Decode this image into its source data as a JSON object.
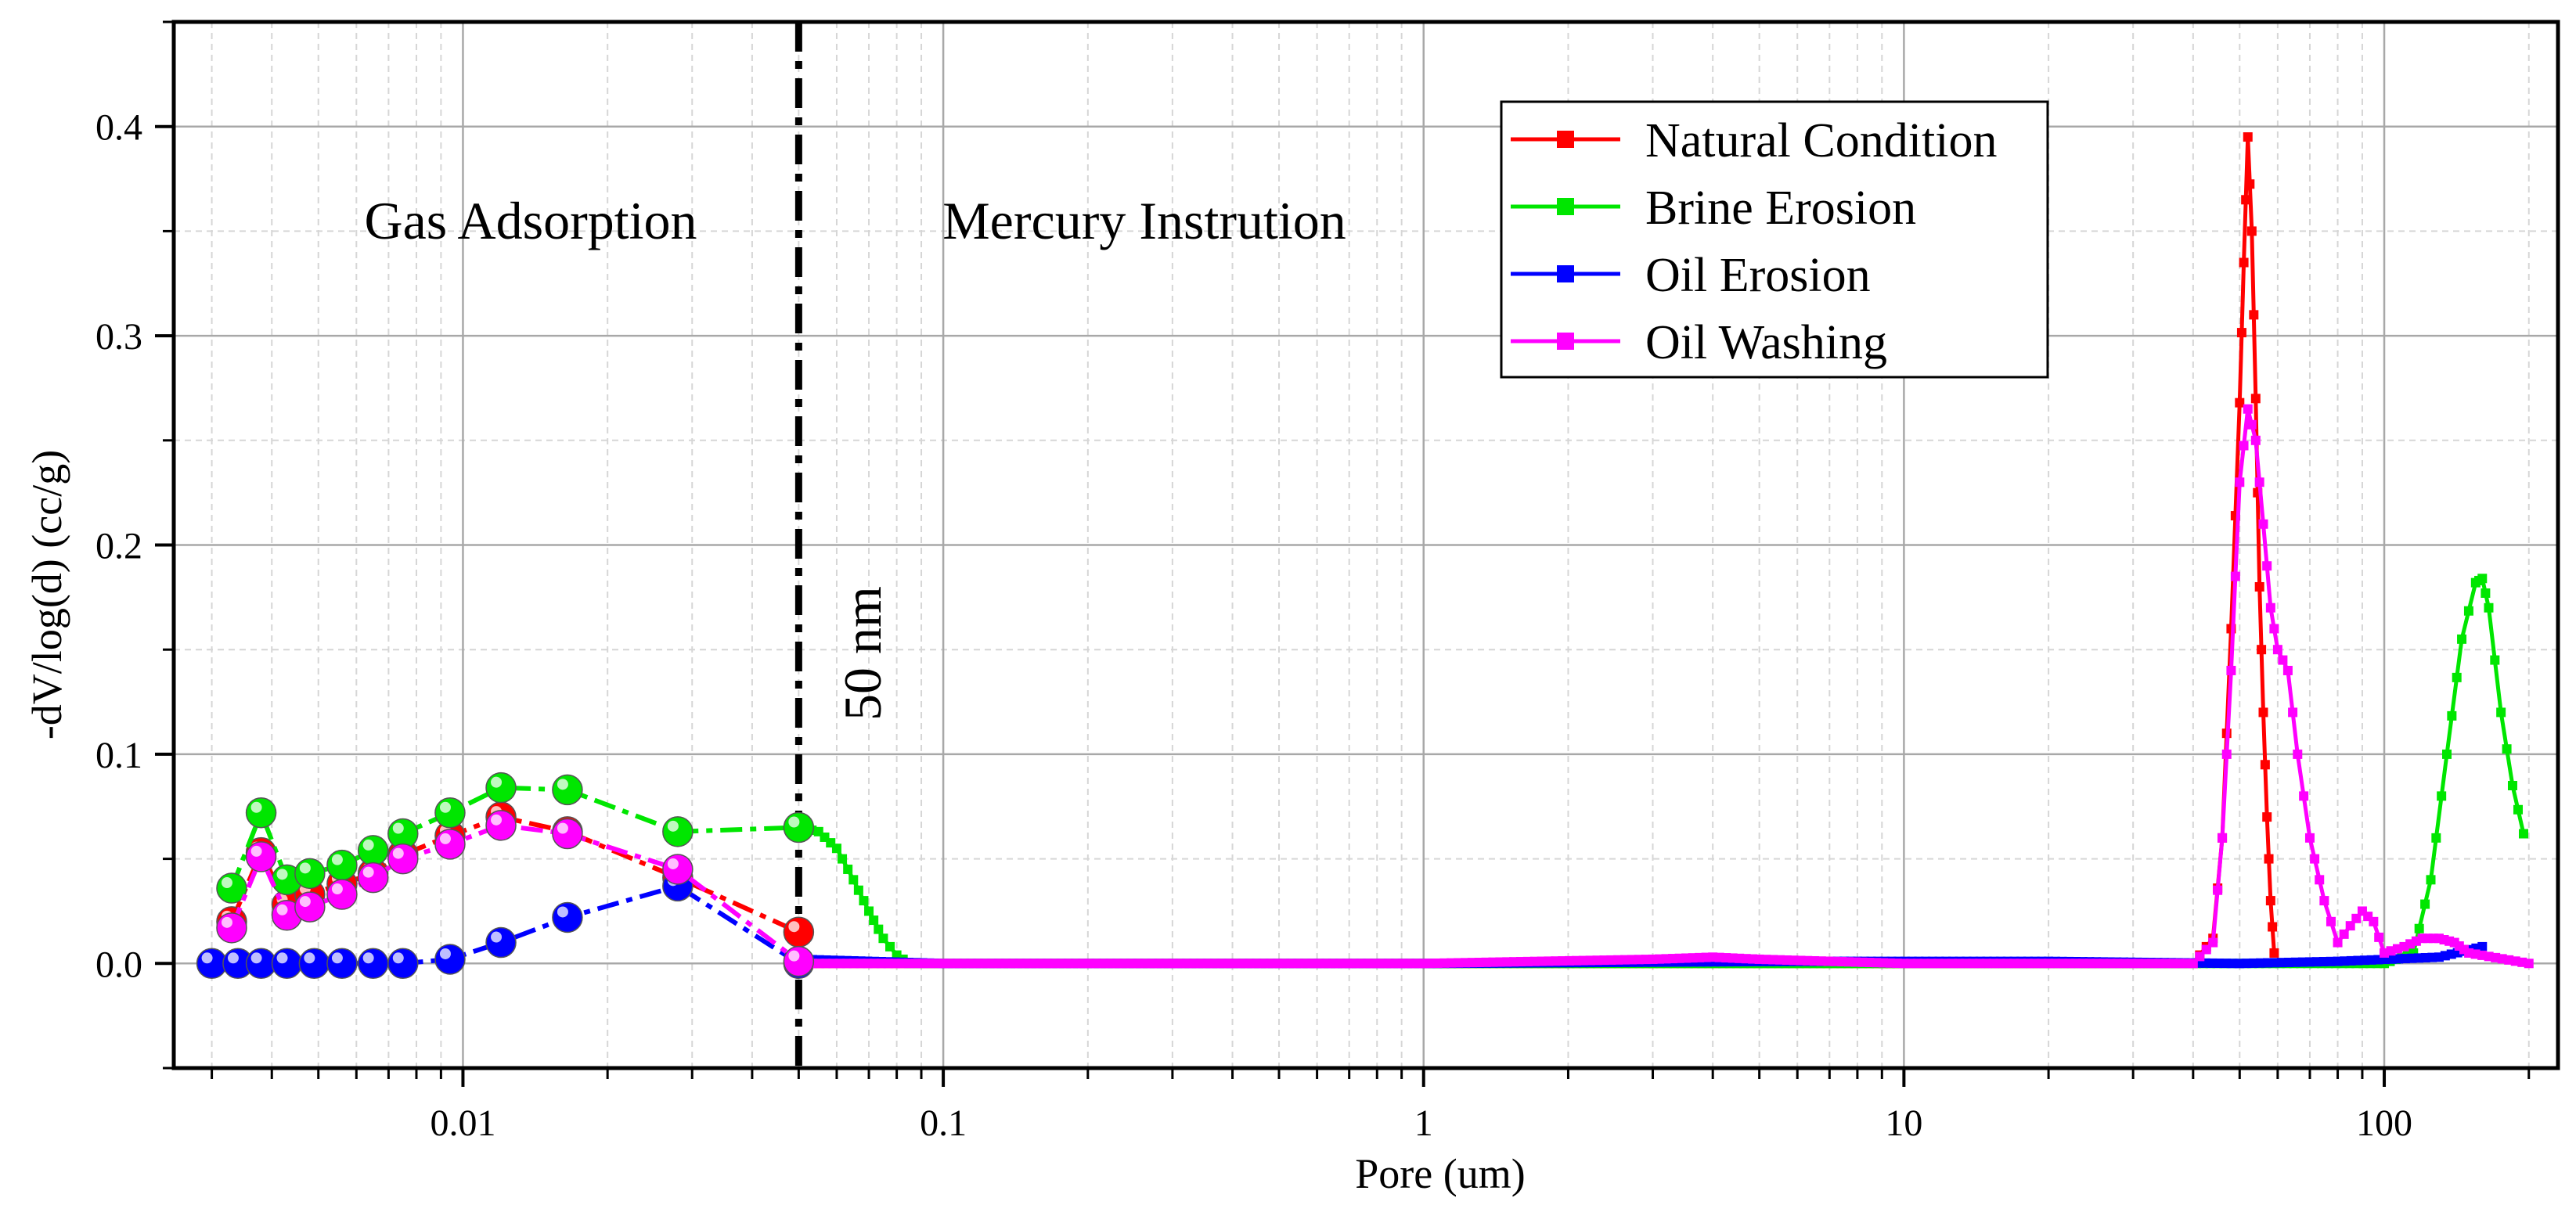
{
  "chart_data": {
    "type": "line",
    "title": "",
    "xlabel": "Pore (um)",
    "ylabel": "-dV/log(d) (cc/g)",
    "x_scale": "log",
    "xlim": [
      0.0025,
      230
    ],
    "ylim": [
      -0.05,
      0.45
    ],
    "grid": true,
    "x_ticks": [
      {
        "value": 0.01,
        "label": "0.01"
      },
      {
        "value": 0.1,
        "label": "0.1"
      },
      {
        "value": 1,
        "label": "1"
      },
      {
        "value": 10,
        "label": "10"
      },
      {
        "value": 100,
        "label": "100"
      }
    ],
    "y_ticks": [
      {
        "value": 0.0,
        "label": "0.0"
      },
      {
        "value": 0.1,
        "label": "0.1"
      },
      {
        "value": 0.2,
        "label": "0.2"
      },
      {
        "value": 0.3,
        "label": "0.3"
      },
      {
        "value": 0.4,
        "label": "0.4"
      }
    ],
    "legend_placement": "top-center-right",
    "annotations": {
      "left_region": "Gas Adsorption",
      "right_region": "Mercury Instrution",
      "divider_label": "50 nm",
      "divider_x": 0.05
    },
    "series": [
      {
        "name": "Natural Condition",
        "color": "#ff0000",
        "gas": {
          "x": [
            0.0033,
            0.0038,
            0.0043,
            0.0048,
            0.0056,
            0.0065,
            0.0075,
            0.0094,
            0.012,
            0.0165,
            0.028,
            0.05
          ],
          "y": [
            0.02,
            0.053,
            0.028,
            0.033,
            0.038,
            0.043,
            0.052,
            0.061,
            0.07,
            0.063,
            0.041,
            0.015
          ]
        },
        "mercury": {
          "x": [
            0.05,
            0.1,
            1,
            10,
            40,
            44,
            46,
            48,
            50,
            51,
            52,
            53,
            54,
            55,
            56,
            57,
            58,
            59
          ],
          "y": [
            0.0,
            0.0,
            0.0,
            0.0,
            0.0,
            0.012,
            0.06,
            0.16,
            0.268,
            0.335,
            0.395,
            0.35,
            0.27,
            0.18,
            0.12,
            0.07,
            0.03,
            0.005
          ]
        }
      },
      {
        "name": "Brine Erosion",
        "color": "#00e600",
        "gas": {
          "x": [
            0.0033,
            0.0038,
            0.0043,
            0.0048,
            0.0056,
            0.0065,
            0.0075,
            0.0094,
            0.012,
            0.0165,
            0.028,
            0.05
          ],
          "y": [
            0.036,
            0.072,
            0.04,
            0.043,
            0.047,
            0.054,
            0.062,
            0.072,
            0.084,
            0.083,
            0.063,
            0.065
          ]
        },
        "mercury": {
          "x": [
            0.05,
            0.055,
            0.06,
            0.065,
            0.07,
            0.075,
            0.08,
            0.085,
            0.1,
            1,
            10,
            100,
            115,
            125,
            135,
            145,
            155,
            160,
            165,
            175,
            185,
            195
          ],
          "y": [
            0.065,
            0.063,
            0.055,
            0.04,
            0.025,
            0.012,
            0.004,
            0.0,
            0.0,
            0.0,
            0.0,
            0.0,
            0.005,
            0.04,
            0.1,
            0.155,
            0.182,
            0.184,
            0.17,
            0.12,
            0.085,
            0.062
          ]
        }
      },
      {
        "name": "Oil Erosion",
        "color": "#0000ff",
        "gas": {
          "x": [
            0.003,
            0.0034,
            0.0038,
            0.0043,
            0.0049,
            0.0056,
            0.0065,
            0.0075,
            0.0094,
            0.012,
            0.0165,
            0.028,
            0.05
          ],
          "y": [
            0.0,
            0.0,
            0.0,
            0.0,
            0.0,
            0.0,
            0.0,
            0.0,
            0.002,
            0.01,
            0.022,
            0.037,
            0.0
          ]
        },
        "mercury": {
          "x": [
            0.05,
            0.1,
            1,
            6,
            8,
            20,
            50,
            80,
            130,
            160
          ],
          "y": [
            0.002,
            0.0,
            0.0,
            0.001,
            0.001,
            0.001,
            0.0,
            0.001,
            0.003,
            0.008
          ]
        }
      },
      {
        "name": "Oil Washing",
        "color": "#ff00ff",
        "gas": {
          "x": [
            0.0033,
            0.0038,
            0.0043,
            0.0048,
            0.0056,
            0.0065,
            0.0075,
            0.0094,
            0.012,
            0.0165,
            0.028,
            0.05
          ],
          "y": [
            0.017,
            0.051,
            0.023,
            0.027,
            0.033,
            0.041,
            0.05,
            0.057,
            0.066,
            0.062,
            0.045,
            0.001
          ]
        },
        "mercury": {
          "x": [
            0.05,
            0.1,
            1,
            3,
            4,
            5,
            10,
            40,
            44,
            46,
            48,
            50,
            52,
            54,
            56,
            58,
            60,
            63,
            66,
            70,
            75,
            80,
            85,
            90,
            95,
            100,
            110,
            120,
            130,
            140,
            150,
            200
          ],
          "y": [
            0.0,
            0.0,
            0.0,
            0.002,
            0.003,
            0.002,
            0.0,
            0.0,
            0.01,
            0.06,
            0.14,
            0.23,
            0.265,
            0.25,
            0.21,
            0.17,
            0.15,
            0.14,
            0.1,
            0.06,
            0.03,
            0.01,
            0.018,
            0.025,
            0.02,
            0.005,
            0.008,
            0.012,
            0.012,
            0.01,
            0.005,
            0.0
          ]
        }
      }
    ]
  }
}
